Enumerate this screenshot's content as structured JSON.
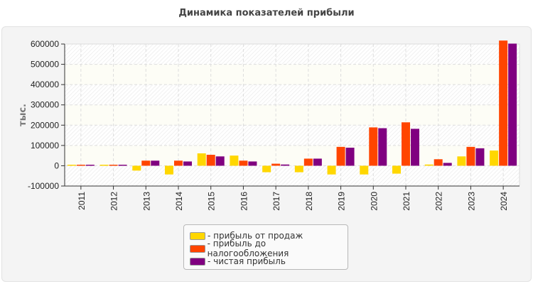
{
  "chart_data": {
    "type": "bar",
    "title": "Динамика показателей прибыли",
    "ylabel": "тыс.",
    "xlabel": "",
    "ylim": [
      -100000,
      600000
    ],
    "yticks": [
      "-100000",
      "0",
      "100000",
      "200000",
      "300000",
      "400000",
      "500000",
      "600000"
    ],
    "grid": true,
    "legend_position": "bottom",
    "categories": [
      "2011",
      "2012",
      "2013",
      "2014",
      "2015",
      "2016",
      "2017",
      "2018",
      "2019",
      "2020",
      "2021",
      "2022",
      "2023",
      "2024"
    ],
    "series": [
      {
        "name": "- прибыль от продаж",
        "color": "#ffd700",
        "values": [
          5000,
          5000,
          -24000,
          -43000,
          61000,
          50000,
          -32000,
          -32000,
          -43000,
          -43000,
          -39000,
          6000,
          46000,
          75000
        ]
      },
      {
        "name": "- прибыль до налогообложения",
        "color": "#ff4500",
        "values": [
          5000,
          5000,
          25000,
          25000,
          54000,
          25000,
          10000,
          35000,
          93000,
          189000,
          214000,
          32000,
          93000,
          617000
        ]
      },
      {
        "name": "- чистая прибыль",
        "color": "#800080",
        "values": [
          5000,
          5000,
          25000,
          21000,
          46000,
          21000,
          6000,
          35000,
          89000,
          185000,
          182000,
          14000,
          86000,
          602000
        ]
      }
    ]
  }
}
